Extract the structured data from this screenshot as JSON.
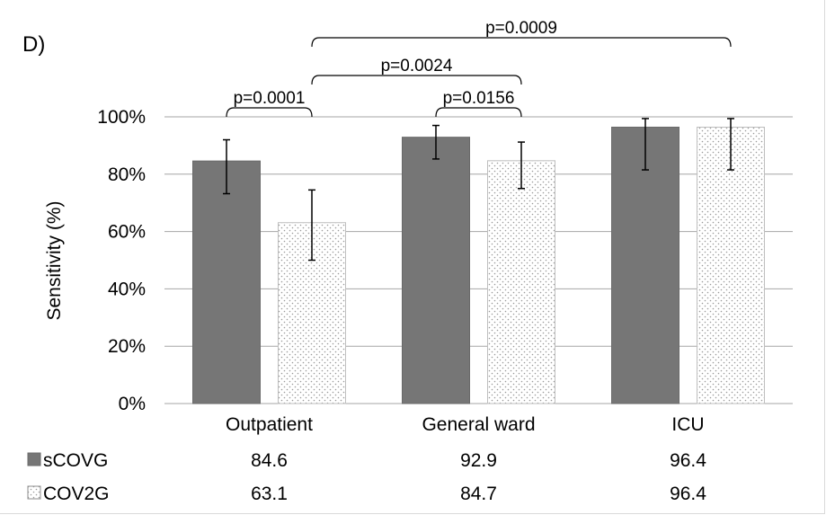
{
  "panel_label": "D)",
  "chart_data": {
    "type": "bar",
    "ylabel": "Sensitivity (%)",
    "xlabel": "",
    "ylim": [
      0,
      100
    ],
    "yticks": [
      "0%",
      "20%",
      "40%",
      "60%",
      "80%",
      "100%"
    ],
    "ytick_values": [
      0,
      20,
      40,
      60,
      80,
      100
    ],
    "grid": true,
    "categories": [
      "Outpatient",
      "General ward",
      "ICU"
    ],
    "series": [
      {
        "name": "sCOVG",
        "values": [
          84.6,
          92.9,
          96.4
        ],
        "error_low": [
          73.2,
          85.3,
          81.5
        ],
        "error_high": [
          92.0,
          97.0,
          99.4
        ],
        "color": "#767676",
        "fill": "solid"
      },
      {
        "name": "COV2G",
        "values": [
          63.1,
          84.7,
          96.4
        ],
        "error_low": [
          50.0,
          75.0,
          81.5
        ],
        "error_high": [
          74.5,
          91.2,
          99.4
        ],
        "color": "#ffffff",
        "fill": "dotted"
      }
    ],
    "table": {
      "rows": [
        {
          "label": "sCOVG",
          "values": [
            "84.6",
            "92.9",
            "96.4"
          ]
        },
        {
          "label": "COV2G",
          "values": [
            "63.1",
            "84.7",
            "96.4"
          ]
        }
      ]
    },
    "annotations": [
      {
        "text": "p=0.0001",
        "from": [
          0,
          0
        ],
        "to": [
          0,
          1
        ],
        "level": 0
      },
      {
        "text": "p=0.0156",
        "from": [
          1,
          0
        ],
        "to": [
          1,
          1
        ],
        "level": 0
      },
      {
        "text": "p=0.0024",
        "from": [
          0,
          1
        ],
        "to": [
          1,
          1
        ],
        "level": 1
      },
      {
        "text": "p=0.0009",
        "from": [
          0,
          1
        ],
        "to": [
          2,
          1
        ],
        "level": 2
      }
    ]
  }
}
